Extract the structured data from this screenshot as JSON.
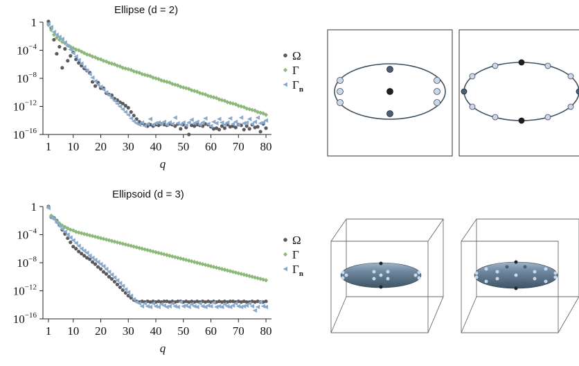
{
  "figure": {
    "top_title": "Ellipse (d = 2)",
    "bottom_title": "Ellipsoid (d = 3)"
  },
  "chart_data": [
    {
      "type": "scatter",
      "title": "Ellipse (d = 2)",
      "xlabel": "q",
      "ylabel": "",
      "yscale": "log",
      "xlim": [
        -1,
        82
      ],
      "ylim": [
        1e-16,
        1
      ],
      "xticks": [
        "1",
        "10",
        "20",
        "30",
        "40",
        "50",
        "60",
        "70",
        "80"
      ],
      "yticks": [
        "1",
        "10^-4",
        "10^-8",
        "10^-12",
        "10^-16"
      ],
      "legend_position": "right",
      "grid": false,
      "series": [
        {
          "name": "Ω",
          "color": "#5a5a5e",
          "marker": "circle",
          "x": [
            1,
            2,
            3,
            4,
            5,
            6,
            7,
            8,
            9,
            10,
            11,
            12,
            13,
            14,
            15,
            16,
            17,
            18,
            19,
            20,
            21,
            22,
            23,
            24,
            25,
            26,
            27,
            28,
            29,
            30,
            31,
            32,
            33,
            34,
            35,
            36,
            37,
            38,
            39,
            40,
            41,
            42,
            43,
            44,
            45,
            46,
            47,
            48,
            49,
            50,
            51,
            52,
            53,
            54,
            55,
            56,
            57,
            58,
            59,
            60,
            61,
            62,
            63,
            64,
            65,
            66,
            67,
            68,
            69,
            70,
            71,
            72,
            73,
            74,
            75,
            76,
            77,
            78,
            79,
            80
          ],
          "y": [
            0.1,
            -0.8,
            -2.5,
            -4.5,
            -3.5,
            -6.5,
            -3.8,
            -5.5,
            -4.8,
            -4.3,
            -5.3,
            -5.8,
            -6.2,
            -6.6,
            -6.9,
            -7.2,
            -8.5,
            -9.1,
            -8.6,
            -9.4,
            -9.4,
            -10.1,
            -10.3,
            -10.4,
            -10.9,
            -11.1,
            -11.4,
            -11.6,
            -11.9,
            -12.2,
            -12.8,
            -13.3,
            -13.8,
            -14.2,
            -14.4,
            -14.6,
            -14.8,
            -14.6,
            -14.8,
            -14.6,
            -14.7,
            -14.5,
            -14.6,
            -14.7,
            -14.5,
            -14.6,
            -14.8,
            -14.5,
            -15.2,
            -14.6,
            -15.0,
            -16.0,
            -14.7,
            -14.8,
            -14.6,
            -14.7,
            -14.8,
            -14.5,
            -14.6,
            -14.9,
            -15.2,
            -15.1,
            -15.3,
            -14.8,
            -15.1,
            -14.6,
            -14.9,
            -14.8,
            -15.0,
            -14.6,
            -14.7,
            -15.3,
            -14.8,
            -15.2,
            -14.6,
            -15.0,
            -14.9,
            -15.6,
            -14.5,
            -15.1
          ]
        },
        {
          "name": "Γ",
          "color": "#8cb87a",
          "marker": "diamond",
          "x": [
            1,
            2,
            3,
            4,
            5,
            6,
            7,
            8,
            9,
            10,
            11,
            12,
            13,
            14,
            15,
            16,
            17,
            18,
            19,
            20,
            21,
            22,
            23,
            24,
            25,
            26,
            27,
            28,
            29,
            30,
            31,
            32,
            33,
            34,
            35,
            36,
            37,
            38,
            39,
            40,
            41,
            42,
            43,
            44,
            45,
            46,
            47,
            48,
            49,
            50,
            51,
            52,
            53,
            54,
            55,
            56,
            57,
            58,
            59,
            60,
            61,
            62,
            63,
            64,
            65,
            66,
            67,
            68,
            69,
            70,
            71,
            72,
            73,
            74,
            75,
            76,
            77,
            78,
            79,
            80
          ],
          "y": [
            -0.4,
            -1.1,
            -1.8,
            -2.2,
            -2.5,
            -2.8,
            -3.0,
            -3.3,
            -3.5,
            -3.7,
            -3.9,
            -4.0,
            -4.2,
            -4.4,
            -4.6,
            -4.7,
            -4.9,
            -5.0,
            -5.2,
            -5.3,
            -5.5,
            -5.6,
            -5.8,
            -5.9,
            -6.0,
            -6.2,
            -6.3,
            -6.5,
            -6.6,
            -6.7,
            -6.8,
            -7.0,
            -7.1,
            -7.2,
            -7.4,
            -7.5,
            -7.6,
            -7.7,
            -7.9,
            -8.0,
            -8.1,
            -8.3,
            -8.4,
            -8.5,
            -8.6,
            -8.8,
            -8.9,
            -9.0,
            -9.2,
            -9.3,
            -9.4,
            -9.5,
            -9.7,
            -9.8,
            -9.9,
            -10.1,
            -10.2,
            -10.3,
            -10.5,
            -10.6,
            -10.7,
            -10.8,
            -11.0,
            -11.1,
            -11.2,
            -11.4,
            -11.5,
            -11.6,
            -11.7,
            -11.9,
            -12.0,
            -12.1,
            -12.3,
            -12.4,
            -12.5,
            -12.6,
            -12.8,
            -12.9,
            -13.0,
            -13.2
          ]
        },
        {
          "name": "Γₙ",
          "color": "#88a8cc",
          "marker": "triangle-left",
          "x": [
            1,
            2,
            3,
            4,
            5,
            6,
            7,
            8,
            9,
            10,
            11,
            12,
            13,
            14,
            15,
            16,
            17,
            18,
            19,
            20,
            21,
            22,
            23,
            24,
            25,
            26,
            27,
            28,
            29,
            30,
            31,
            32,
            33,
            34,
            35,
            36,
            37,
            38,
            39,
            40,
            41,
            42,
            43,
            44,
            45,
            46,
            47,
            48,
            49,
            50,
            51,
            52,
            53,
            54,
            55,
            56,
            57,
            58,
            59,
            60,
            61,
            62,
            63,
            64,
            65,
            66,
            67,
            68,
            69,
            70,
            71,
            72,
            73,
            74,
            75,
            76,
            77,
            78,
            79,
            80
          ],
          "y": [
            -0.2,
            -0.7,
            -1.4,
            -1.8,
            -2.1,
            -2.4,
            -2.9,
            -3.4,
            -3.9,
            -4.4,
            -4.9,
            -5.4,
            -5.9,
            -6.4,
            -6.9,
            -7.4,
            -7.9,
            -8.4,
            -8.9,
            -9.2,
            -9.6,
            -10.0,
            -10.4,
            -10.8,
            -11.2,
            -11.6,
            -12.0,
            -12.4,
            -12.8,
            -13.2,
            -13.7,
            -14.1,
            -14.4,
            -14.6,
            -14.3,
            -14.8,
            -14.5,
            -13.8,
            -14.6,
            -14.4,
            -14.3,
            -14.5,
            -14.2,
            -14.6,
            -14.3,
            -14.5,
            -13.6,
            -14.4,
            -14.6,
            -14.3,
            -14.7,
            -14.3,
            -13.9,
            -14.4,
            -14.2,
            -14.6,
            -14.3,
            -13.7,
            -14.5,
            -14.8,
            -14.2,
            -14.4,
            -13.8,
            -14.3,
            -14.6,
            -14.3,
            -13.7,
            -14.5,
            -14.2,
            -14.6,
            -13.6,
            -14.4,
            -14.3,
            -13.8,
            -14.5,
            -14.2,
            -13.6,
            -14.4,
            -14.3,
            -14.0
          ]
        }
      ]
    },
    {
      "type": "scatter",
      "title": "Ellipsoid (d = 3)",
      "xlabel": "q",
      "ylabel": "",
      "yscale": "log",
      "xlim": [
        -1,
        82
      ],
      "ylim": [
        1e-16,
        1
      ],
      "xticks": [
        "1",
        "10",
        "20",
        "30",
        "40",
        "50",
        "60",
        "70",
        "80"
      ],
      "yticks": [
        "1",
        "10^-4",
        "10^-8",
        "10^-12",
        "10^-16"
      ],
      "legend_position": "right",
      "grid": false,
      "series": [
        {
          "name": "Ω",
          "color": "#5a5a5e",
          "marker": "circle",
          "x": [
            1,
            2,
            3,
            4,
            5,
            6,
            7,
            8,
            9,
            10,
            11,
            12,
            13,
            14,
            15,
            16,
            17,
            18,
            19,
            20,
            21,
            22,
            23,
            24,
            25,
            26,
            27,
            28,
            29,
            30,
            31,
            32,
            33,
            34,
            35,
            36,
            37,
            38,
            39,
            40,
            41,
            42,
            43,
            44,
            45,
            46,
            47,
            48,
            49,
            50,
            51,
            52,
            53,
            54,
            55,
            56,
            57,
            58,
            59,
            60,
            61,
            62,
            63,
            64,
            65,
            66,
            67,
            68,
            69,
            70,
            71,
            72,
            73,
            74,
            75,
            76,
            77,
            78,
            79,
            80
          ],
          "y": [
            0.0,
            -1.5,
            -1.6,
            -2.0,
            -2.6,
            -3.3,
            -3.9,
            -4.5,
            -5.1,
            -5.7,
            -6.0,
            -6.4,
            -6.7,
            -7.0,
            -7.3,
            -7.5,
            -7.9,
            -8.2,
            -8.6,
            -8.9,
            -9.3,
            -9.6,
            -10.0,
            -10.3,
            -10.7,
            -11.1,
            -11.5,
            -11.9,
            -12.3,
            -12.7,
            -13.0,
            -13.3,
            -13.5,
            -13.6,
            -13.5,
            -13.6,
            -13.5,
            -13.6,
            -13.5,
            -13.6,
            -13.5,
            -13.6,
            -13.5,
            -13.5,
            -13.6,
            -13.5,
            -13.6,
            -13.5,
            -13.5,
            -13.6,
            -13.5,
            -13.6,
            -13.5,
            -13.6,
            -13.5,
            -13.6,
            -13.5,
            -13.6,
            -13.5,
            -13.6,
            -13.5,
            -13.6,
            -13.5,
            -13.6,
            -13.5,
            -13.6,
            -13.5,
            -13.5,
            -13.6,
            -13.5,
            -13.6,
            -13.5,
            -13.6,
            -13.6,
            -13.5,
            -13.6,
            -13.5,
            -13.6,
            -13.6,
            -13.5
          ]
        },
        {
          "name": "Γ",
          "color": "#8cb87a",
          "marker": "diamond",
          "x": [
            1,
            2,
            3,
            4,
            5,
            6,
            7,
            8,
            9,
            10,
            11,
            12,
            13,
            14,
            15,
            16,
            17,
            18,
            19,
            20,
            21,
            22,
            23,
            24,
            25,
            26,
            27,
            28,
            29,
            30,
            31,
            32,
            33,
            34,
            35,
            36,
            37,
            38,
            39,
            40,
            41,
            42,
            43,
            44,
            45,
            46,
            47,
            48,
            49,
            50,
            51,
            52,
            53,
            54,
            55,
            56,
            57,
            58,
            59,
            60,
            61,
            62,
            63,
            64,
            65,
            66,
            67,
            68,
            69,
            70,
            71,
            72,
            73,
            74,
            75,
            76,
            77,
            78,
            79,
            80
          ],
          "y": [
            -0.1,
            -1.3,
            -1.7,
            -2.1,
            -2.4,
            -2.7,
            -2.9,
            -3.1,
            -3.3,
            -3.4,
            -3.6,
            -3.7,
            -3.8,
            -3.9,
            -4.0,
            -4.1,
            -4.2,
            -4.3,
            -4.4,
            -4.5,
            -4.6,
            -4.7,
            -4.8,
            -4.9,
            -5.0,
            -5.1,
            -5.2,
            -5.3,
            -5.4,
            -5.5,
            -5.6,
            -5.7,
            -5.8,
            -5.9,
            -6.0,
            -6.1,
            -6.2,
            -6.3,
            -6.4,
            -6.5,
            -6.6,
            -6.7,
            -6.8,
            -6.9,
            -7.0,
            -7.1,
            -7.2,
            -7.3,
            -7.4,
            -7.5,
            -7.6,
            -7.7,
            -7.8,
            -7.9,
            -8.0,
            -8.1,
            -8.2,
            -8.3,
            -8.4,
            -8.5,
            -8.6,
            -8.7,
            -8.8,
            -8.9,
            -9.0,
            -9.1,
            -9.2,
            -9.3,
            -9.4,
            -9.5,
            -9.6,
            -9.7,
            -9.8,
            -9.9,
            -10.0,
            -10.1,
            -10.2,
            -10.3,
            -10.4,
            -10.5
          ]
        },
        {
          "name": "Γₙ",
          "color": "#88a8cc",
          "marker": "triangle-left",
          "x": [
            1,
            2,
            3,
            4,
            5,
            6,
            7,
            8,
            9,
            10,
            11,
            12,
            13,
            14,
            15,
            16,
            17,
            18,
            19,
            20,
            21,
            22,
            23,
            24,
            25,
            26,
            27,
            28,
            29,
            30,
            31,
            32,
            33,
            34,
            35,
            36,
            37,
            38,
            39,
            40,
            41,
            42,
            43,
            44,
            45,
            46,
            47,
            48,
            49,
            50,
            51,
            52,
            53,
            54,
            55,
            56,
            57,
            58,
            59,
            60,
            61,
            62,
            63,
            64,
            65,
            66,
            67,
            68,
            69,
            70,
            71,
            72,
            73,
            74,
            75,
            76,
            77,
            78,
            79,
            80
          ],
          "y": [
            -0.2,
            -1.5,
            -1.8,
            -2.3,
            -2.8,
            -3.2,
            -3.6,
            -4.0,
            -4.4,
            -4.8,
            -5.2,
            -5.6,
            -6.0,
            -6.3,
            -6.6,
            -7.0,
            -7.3,
            -7.6,
            -7.9,
            -8.2,
            -8.5,
            -8.9,
            -9.3,
            -9.7,
            -10.1,
            -10.5,
            -10.9,
            -11.3,
            -11.8,
            -12.2,
            -12.7,
            -13.2,
            -13.6,
            -13.8,
            -14.2,
            -13.8,
            -14.2,
            -14.3,
            -13.8,
            -14.2,
            -14.3,
            -13.9,
            -14.1,
            -14.3,
            -14.2,
            -13.8,
            -14.2,
            -14.3,
            -13.6,
            -14.2,
            -14.1,
            -14.3,
            -13.9,
            -14.2,
            -14.3,
            -13.8,
            -14.2,
            -14.3,
            -14.1,
            -14.2,
            -13.7,
            -14.3,
            -14.2,
            -14.3,
            -13.9,
            -14.2,
            -14.3,
            -14.1,
            -13.8,
            -14.2,
            -14.3,
            -14.2,
            -14.1,
            -13.8,
            -14.2,
            -14.8,
            -14.3,
            -13.6,
            -14.2,
            -14.3
          ]
        }
      ]
    }
  ]
}
